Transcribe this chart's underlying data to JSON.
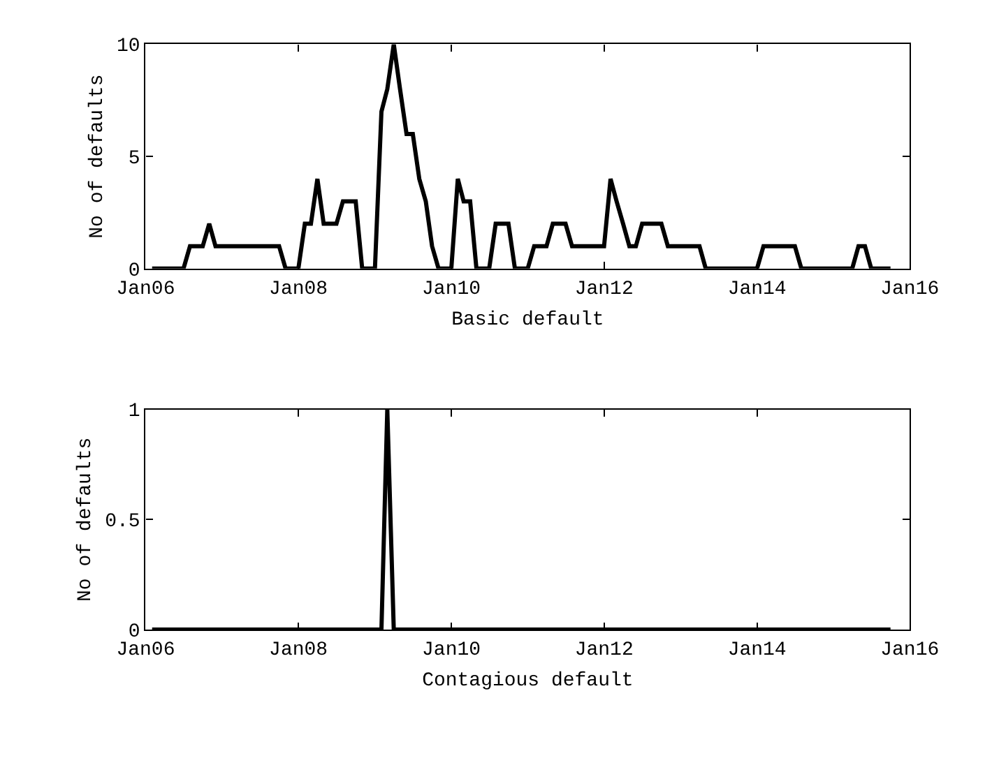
{
  "chart_data": [
    {
      "type": "line",
      "xlabel": "Basic default",
      "ylabel": "No of defaults",
      "x": [
        "2006-02",
        "2006-03",
        "2006-04",
        "2006-05",
        "2006-06",
        "2006-07",
        "2006-08",
        "2006-09",
        "2006-10",
        "2006-11",
        "2006-12",
        "2007-01",
        "2007-02",
        "2007-03",
        "2007-04",
        "2007-05",
        "2007-06",
        "2007-07",
        "2007-08",
        "2007-09",
        "2007-10",
        "2007-11",
        "2007-12",
        "2008-01",
        "2008-02",
        "2008-03",
        "2008-04",
        "2008-05",
        "2008-06",
        "2008-07",
        "2008-08",
        "2008-09",
        "2008-10",
        "2008-11",
        "2008-12",
        "2009-01",
        "2009-02",
        "2009-03",
        "2009-04",
        "2009-05",
        "2009-06",
        "2009-07",
        "2009-08",
        "2009-09",
        "2009-10",
        "2009-11",
        "2009-12",
        "2010-01",
        "2010-02",
        "2010-03",
        "2010-04",
        "2010-05",
        "2010-06",
        "2010-07",
        "2010-08",
        "2010-09",
        "2010-10",
        "2010-11",
        "2010-12",
        "2011-01",
        "2011-02",
        "2011-03",
        "2011-04",
        "2011-05",
        "2011-06",
        "2011-07",
        "2011-08",
        "2011-09",
        "2011-10",
        "2011-11",
        "2011-12",
        "2012-01",
        "2012-02",
        "2012-03",
        "2012-04",
        "2012-05",
        "2012-06",
        "2012-07",
        "2012-08",
        "2012-09",
        "2012-10",
        "2012-11",
        "2012-12",
        "2013-01",
        "2013-02",
        "2013-03",
        "2013-04",
        "2013-05",
        "2013-06",
        "2013-07",
        "2013-08",
        "2013-09",
        "2013-10",
        "2013-11",
        "2013-12",
        "2014-01",
        "2014-02",
        "2014-03",
        "2014-04",
        "2014-05",
        "2014-06",
        "2014-07",
        "2014-08",
        "2014-09",
        "2014-10",
        "2014-11",
        "2014-12",
        "2015-01",
        "2015-02",
        "2015-03",
        "2015-04",
        "2015-05",
        "2015-06",
        "2015-07",
        "2015-08",
        "2015-09",
        "2015-10"
      ],
      "series": [
        {
          "color": "#000000",
          "values": [
            0,
            0,
            0,
            0,
            0,
            0,
            1,
            1,
            1,
            2,
            1,
            1,
            1,
            1,
            1,
            1,
            1,
            1,
            1,
            1,
            1,
            0,
            0,
            0,
            2,
            2,
            4,
            2,
            2,
            2,
            3,
            3,
            3,
            0,
            0,
            0,
            7,
            8,
            10,
            8,
            6,
            6,
            4,
            3,
            1,
            0,
            0,
            0,
            4,
            3,
            3,
            0,
            0,
            0,
            2,
            2,
            2,
            0,
            0,
            0,
            1,
            1,
            1,
            2,
            2,
            2,
            1,
            1,
            1,
            1,
            1,
            1,
            4,
            3,
            2,
            1,
            1,
            2,
            2,
            2,
            2,
            1,
            1,
            1,
            1,
            1,
            1,
            0,
            0,
            0,
            0,
            0,
            0,
            0,
            0,
            0,
            1,
            1,
            1,
            1,
            1,
            1,
            0,
            0,
            0,
            0,
            0,
            0,
            0,
            0,
            0,
            1,
            1,
            0,
            0,
            0,
            0
          ]
        }
      ],
      "xlim": [
        "2006-01",
        "2016-01"
      ],
      "xticks": [
        {
          "value": "2006-01",
          "label": "Jan06"
        },
        {
          "value": "2008-01",
          "label": "Jan08"
        },
        {
          "value": "2010-01",
          "label": "Jan10"
        },
        {
          "value": "2012-01",
          "label": "Jan12"
        },
        {
          "value": "2014-01",
          "label": "Jan14"
        },
        {
          "value": "2016-01",
          "label": "Jan16"
        }
      ],
      "ylim": [
        0,
        10
      ],
      "yticks": [
        0,
        5,
        10
      ],
      "marker": "none",
      "line_style": "solid"
    },
    {
      "type": "line",
      "xlabel": "Contagious default",
      "ylabel": "No of defaults",
      "x": [
        "2006-02",
        "2009-02",
        "2009-03",
        "2009-04",
        "2015-10"
      ],
      "series": [
        {
          "color": "#000000",
          "values": [
            0,
            0,
            1,
            0,
            0
          ]
        }
      ],
      "xlim": [
        "2006-01",
        "2016-01"
      ],
      "xticks": [
        {
          "value": "2006-01",
          "label": "Jan06"
        },
        {
          "value": "2008-01",
          "label": "Jan08"
        },
        {
          "value": "2010-01",
          "label": "Jan10"
        },
        {
          "value": "2012-01",
          "label": "Jan12"
        },
        {
          "value": "2014-01",
          "label": "Jan14"
        },
        {
          "value": "2016-01",
          "label": "Jan16"
        }
      ],
      "ylim": [
        0,
        1
      ],
      "yticks": [
        0,
        {
          "value": 0.5,
          "label": "0.5"
        },
        1
      ],
      "marker": "none",
      "line_style": "solid"
    }
  ]
}
